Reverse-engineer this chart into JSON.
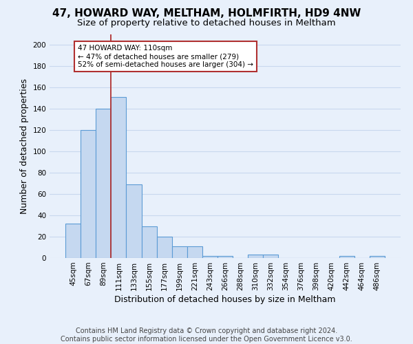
{
  "title": "47, HOWARD WAY, MELTHAM, HOLMFIRTH, HD9 4NW",
  "subtitle": "Size of property relative to detached houses in Meltham",
  "xlabel": "Distribution of detached houses by size in Meltham",
  "ylabel": "Number of detached properties",
  "footer_line1": "Contains HM Land Registry data © Crown copyright and database right 2024.",
  "footer_line2": "Contains public sector information licensed under the Open Government Licence v3.0.",
  "categories": [
    "45sqm",
    "67sqm",
    "89sqm",
    "111sqm",
    "133sqm",
    "155sqm",
    "177sqm",
    "199sqm",
    "221sqm",
    "243sqm",
    "266sqm",
    "288sqm",
    "310sqm",
    "332sqm",
    "354sqm",
    "376sqm",
    "398sqm",
    "420sqm",
    "442sqm",
    "464sqm",
    "486sqm"
  ],
  "values": [
    32,
    120,
    140,
    151,
    69,
    30,
    20,
    11,
    11,
    2,
    2,
    0,
    3,
    3,
    0,
    0,
    0,
    0,
    2,
    0,
    2
  ],
  "bar_color": "#c5d8f0",
  "bar_edge_color": "#5b9bd5",
  "vline_x_idx": 3,
  "vline_color": "#b03030",
  "annotation_text": "47 HOWARD WAY: 110sqm\n← 47% of detached houses are smaller (279)\n52% of semi-detached houses are larger (304) →",
  "annotation_box_color": "white",
  "annotation_box_edge": "#b03030",
  "ylim": [
    0,
    210
  ],
  "yticks": [
    0,
    20,
    40,
    60,
    80,
    100,
    120,
    140,
    160,
    180,
    200
  ],
  "background_color": "#e8f0fb",
  "grid_color": "#c8d8ee",
  "title_fontsize": 11,
  "subtitle_fontsize": 9.5,
  "axis_label_fontsize": 9,
  "tick_fontsize": 7.5,
  "footer_fontsize": 7
}
